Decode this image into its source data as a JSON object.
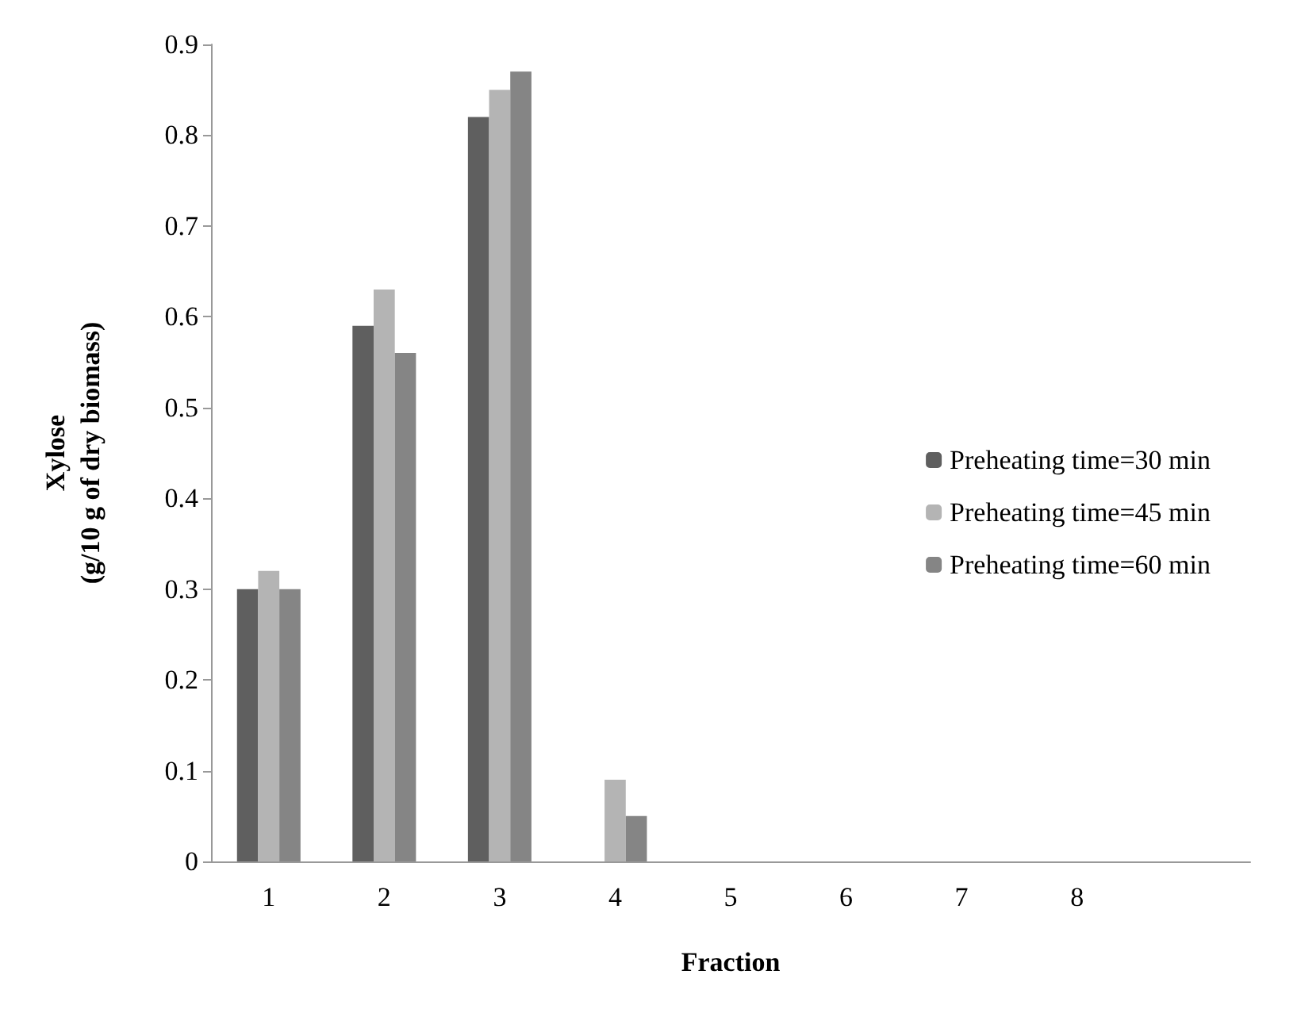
{
  "chart_data": {
    "type": "bar",
    "xlabel": "Fraction",
    "ylabel": "Xylose\n(g/10 g of dry biomass)",
    "categories": [
      "1",
      "2",
      "3",
      "4",
      "5",
      "6",
      "7",
      "8",
      null
    ],
    "series": [
      {
        "name": "Preheating time=30 min",
        "color": "#5f5f5f",
        "values": [
          0.3,
          0.59,
          0.82,
          0.0,
          0.0,
          0.0,
          0.0,
          0.0,
          0.0
        ]
      },
      {
        "name": "Preheating time=45 min",
        "color": "#b4b4b4",
        "values": [
          0.32,
          0.63,
          0.85,
          0.09,
          0.0,
          0.0,
          0.0,
          0.0,
          0.0
        ]
      },
      {
        "name": "Preheating time=60 min",
        "color": "#858585",
        "values": [
          0.3,
          0.56,
          0.87,
          0.05,
          0.0,
          0.0,
          0.0,
          0.0,
          0.0
        ]
      }
    ],
    "ylim": [
      0,
      0.9
    ],
    "yticks": [
      0,
      0.1,
      0.2,
      0.3,
      0.4,
      0.5,
      0.6,
      0.7,
      0.8,
      0.9
    ],
    "grid": false,
    "legend": "right"
  }
}
